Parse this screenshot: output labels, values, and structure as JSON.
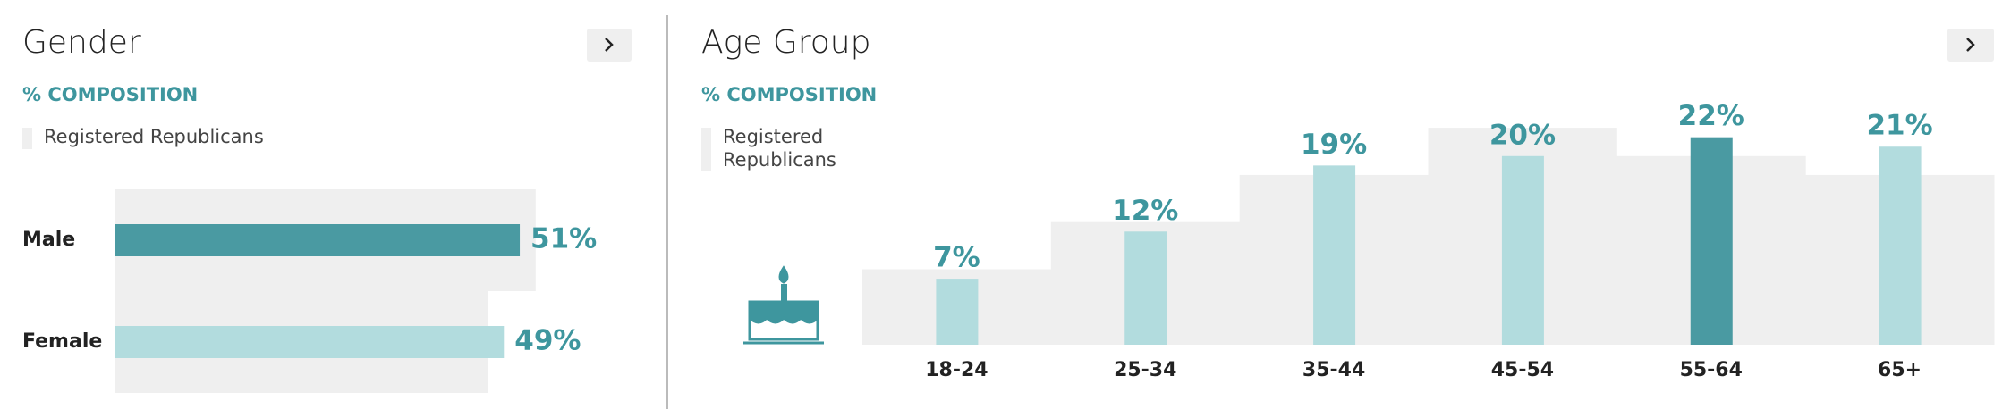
{
  "chart_data": [
    {
      "type": "hbar",
      "title": "Gender",
      "subtitle": "% COMPOSITION",
      "categories": [
        "Male",
        "Female"
      ],
      "xlim": [
        0,
        60
      ],
      "series": [
        {
          "name": "Registered Republicans",
          "color": "#efefef",
          "values": [
            53,
            47
          ]
        },
        {
          "colors": [
            "#4a9aa2",
            "#b2dcde"
          ],
          "values": [
            51,
            49
          ],
          "value_labels": [
            "51%",
            "49%"
          ]
        }
      ]
    },
    {
      "type": "bar",
      "title": "Age Group",
      "subtitle": "% COMPOSITION",
      "categories": [
        "18-24",
        "25-34",
        "35-44",
        "45-54",
        "55-64",
        "65+"
      ],
      "ylim": [
        0,
        25
      ],
      "series": [
        {
          "name": "Registered Republicans",
          "color": "#efefef",
          "values": [
            8,
            13,
            18,
            23,
            20,
            18
          ]
        },
        {
          "colors": [
            "#b2dcde",
            "#b2dcde",
            "#b2dcde",
            "#b2dcde",
            "#4a9aa2",
            "#b2dcde"
          ],
          "values": [
            7,
            12,
            19,
            20,
            22,
            21
          ],
          "value_labels": [
            "7%",
            "12%",
            "19%",
            "20%",
            "22%",
            "21%"
          ]
        }
      ]
    }
  ]
}
